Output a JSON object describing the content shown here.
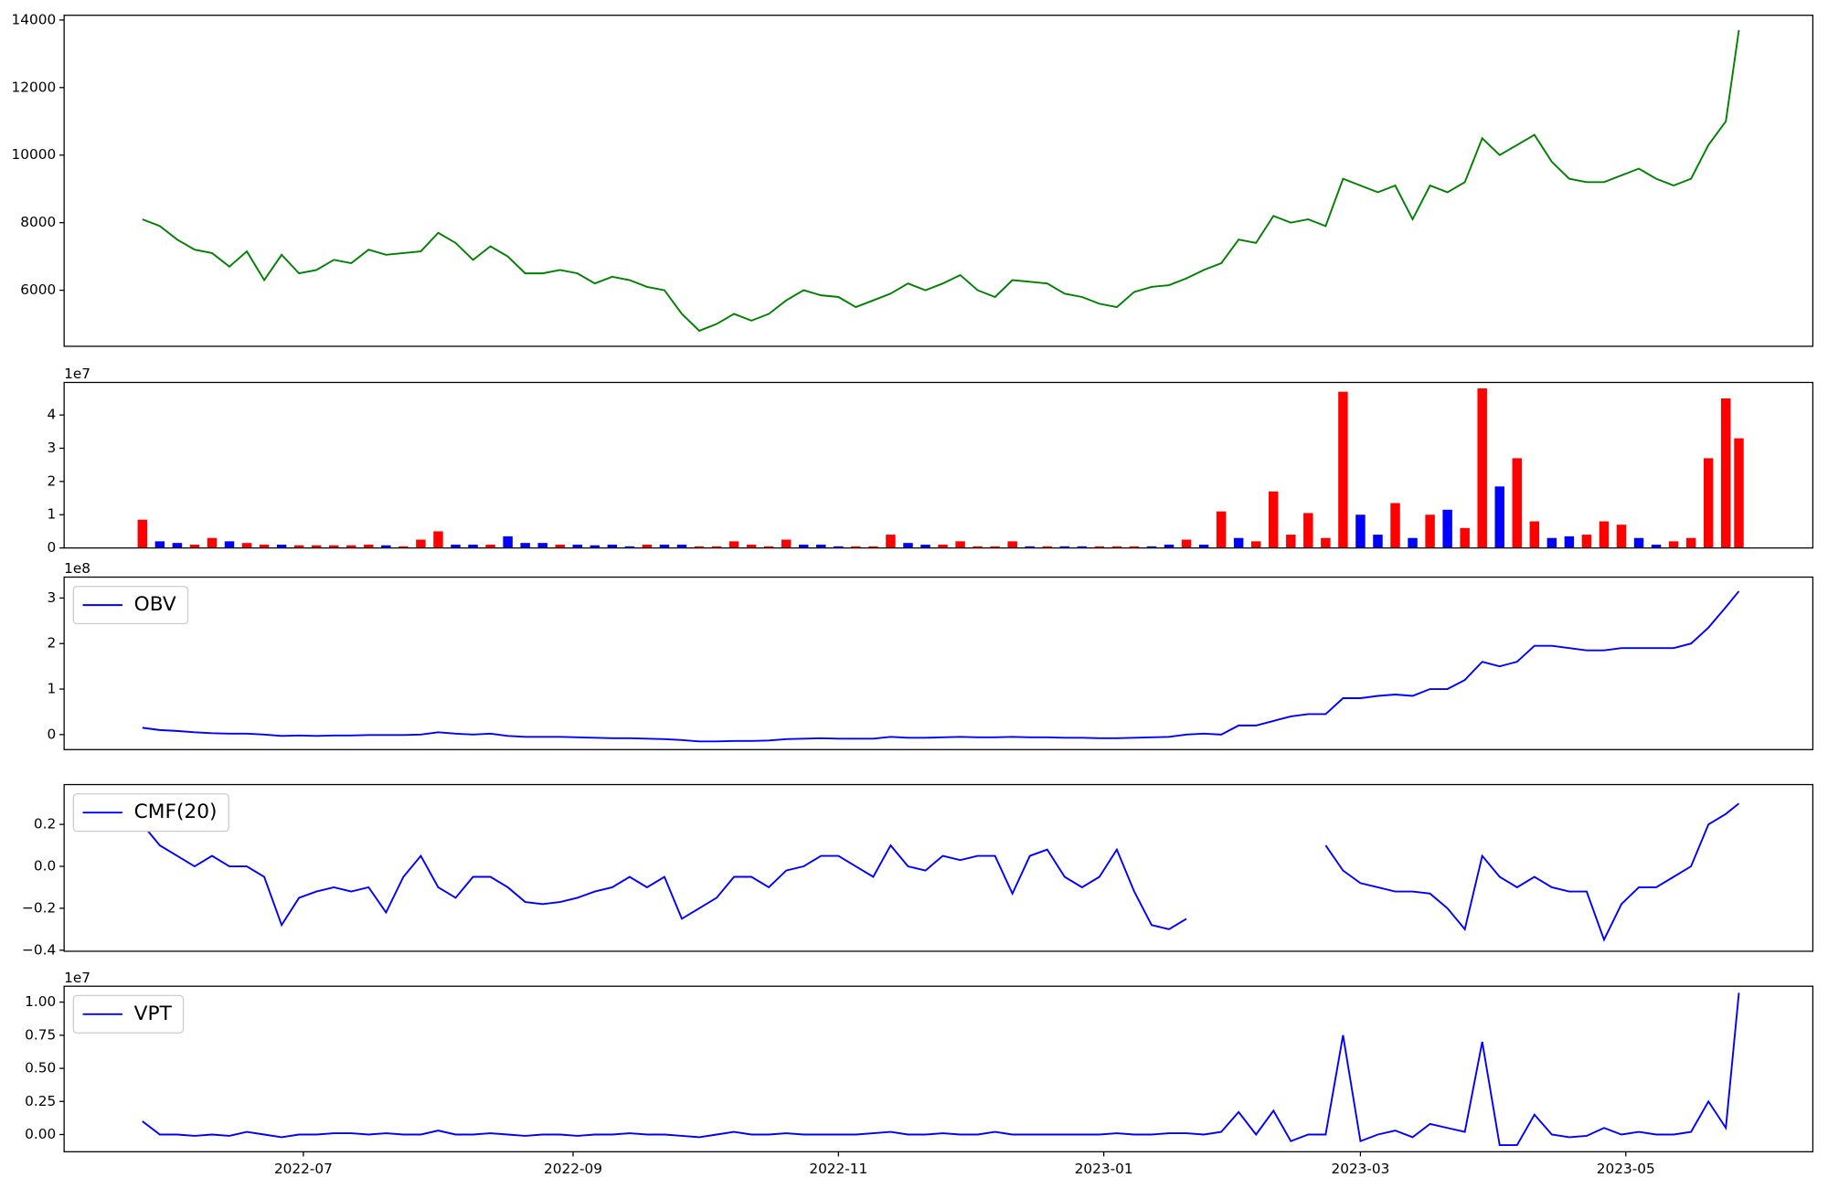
{
  "chart_data": [
    {
      "type": "line",
      "color": "green",
      "x": [
        -37,
        -33,
        -29,
        -25,
        -21,
        -17,
        -13,
        -9,
        -5,
        -1,
        3,
        7,
        11,
        15,
        19,
        23,
        27,
        31,
        35,
        39,
        43,
        47,
        51,
        55,
        59,
        63,
        67,
        71,
        75,
        79,
        83,
        87,
        91,
        95,
        99,
        103,
        107,
        111,
        115,
        119,
        123,
        127,
        131,
        135,
        139,
        143,
        147,
        151,
        155,
        159,
        163,
        167,
        171,
        175,
        179,
        183,
        187,
        191,
        195,
        199,
        203,
        207,
        211,
        215,
        219,
        223,
        227,
        231,
        235,
        239,
        243,
        247,
        251,
        255,
        259,
        263,
        267,
        271,
        275,
        279,
        283,
        287,
        291,
        295,
        299,
        303,
        307,
        311,
        315,
        319,
        323,
        327,
        330
      ],
      "values": [
        8100,
        7900,
        7500,
        7200,
        7100,
        6700,
        7150,
        6300,
        7050,
        6500,
        6600,
        6900,
        6800,
        7200,
        7050,
        7100,
        7150,
        7700,
        7400,
        6900,
        7300,
        7000,
        6500,
        6500,
        6600,
        6500,
        6200,
        6400,
        6300,
        6100,
        6000,
        5300,
        4800,
        5000,
        5300,
        5100,
        5300,
        5700,
        6000,
        5850,
        5800,
        5500,
        5700,
        5900,
        6200,
        6000,
        6200,
        6450,
        6000,
        5800,
        6300,
        6250,
        6200,
        5900,
        5800,
        5600,
        5500,
        5950,
        6100,
        6150,
        6350,
        6600,
        6800,
        7500,
        7400,
        8200,
        8000,
        8100,
        7900,
        9300,
        9100,
        8900,
        9100,
        8100,
        9100,
        8900,
        9200,
        10500,
        10000,
        10300,
        10600,
        9800,
        9300,
        9200,
        9200,
        9400,
        9600,
        9300,
        9100,
        9300,
        10300,
        11000,
        13700
      ],
      "xlim": [
        -55,
        347
      ],
      "ylim": [
        4340,
        14140
      ],
      "yticks": [
        6000,
        8000,
        10000,
        12000,
        14000
      ]
    },
    {
      "type": "bar",
      "offset_label": "1e7",
      "x": [
        -37,
        -33,
        -29,
        -25,
        -21,
        -17,
        -13,
        -9,
        -5,
        -1,
        3,
        7,
        11,
        15,
        19,
        23,
        27,
        31,
        35,
        39,
        43,
        47,
        51,
        55,
        59,
        63,
        67,
        71,
        75,
        79,
        83,
        87,
        91,
        95,
        99,
        103,
        107,
        111,
        115,
        119,
        123,
        127,
        131,
        135,
        139,
        143,
        147,
        151,
        155,
        159,
        163,
        167,
        171,
        175,
        179,
        183,
        187,
        191,
        195,
        199,
        203,
        207,
        211,
        215,
        219,
        223,
        227,
        231,
        235,
        239,
        243,
        247,
        251,
        255,
        259,
        263,
        267,
        271,
        275,
        279,
        283,
        287,
        291,
        295,
        299,
        303,
        307,
        311,
        315,
        319,
        323,
        327,
        330
      ],
      "values": [
        0.85,
        0.2,
        0.15,
        0.1,
        0.3,
        0.2,
        0.15,
        0.1,
        0.1,
        0.08,
        0.08,
        0.08,
        0.08,
        0.1,
        0.08,
        0.05,
        0.25,
        0.5,
        0.1,
        0.1,
        0.1,
        0.35,
        0.15,
        0.15,
        0.1,
        0.1,
        0.08,
        0.1,
        0.05,
        0.1,
        0.1,
        0.1,
        0.05,
        0.05,
        0.2,
        0.1,
        0.05,
        0.25,
        0.1,
        0.1,
        0.05,
        0.05,
        0.05,
        0.4,
        0.15,
        0.1,
        0.1,
        0.2,
        0.05,
        0.05,
        0.2,
        0.05,
        0.05,
        0.05,
        0.05,
        0.05,
        0.05,
        0.05,
        0.05,
        0.1,
        0.25,
        0.1,
        1.1,
        0.3,
        0.2,
        1.7,
        0.4,
        1.05,
        0.3,
        4.7,
        1.0,
        0.4,
        1.35,
        0.3,
        1.0,
        1.15,
        0.6,
        4.8,
        1.85,
        2.7,
        0.8,
        0.3,
        0.35,
        0.4,
        0.8,
        0.7,
        0.3,
        0.1,
        0.2,
        0.3,
        2.7,
        4.5,
        3.3
      ],
      "colors": [
        "red",
        "blue",
        "blue",
        "red",
        "red",
        "blue",
        "red",
        "red",
        "blue",
        "red",
        "red",
        "red",
        "red",
        "red",
        "blue",
        "red",
        "red",
        "red",
        "blue",
        "blue",
        "red",
        "blue",
        "blue",
        "blue",
        "red",
        "blue",
        "blue",
        "blue",
        "blue",
        "red",
        "blue",
        "blue",
        "red",
        "red",
        "red",
        "red",
        "red",
        "red",
        "blue",
        "blue",
        "blue",
        "red",
        "red",
        "red",
        "blue",
        "blue",
        "red",
        "red",
        "red",
        "red",
        "red",
        "blue",
        "red",
        "blue",
        "blue",
        "red",
        "red",
        "red",
        "blue",
        "blue",
        "red",
        "blue",
        "red",
        "blue",
        "red",
        "red",
        "red",
        "red",
        "red",
        "red",
        "blue",
        "blue",
        "red",
        "blue",
        "red",
        "blue",
        "red",
        "red",
        "blue",
        "red",
        "red",
        "blue",
        "blue",
        "red",
        "red",
        "red",
        "blue",
        "blue",
        "red",
        "red",
        "red",
        "red",
        "red"
      ],
      "xlim": [
        -55,
        347
      ],
      "ylim": [
        0,
        4.98
      ],
      "yticks": [
        0,
        1,
        2,
        3,
        4
      ]
    },
    {
      "type": "line",
      "offset_label": "1e8",
      "legend": "upper left",
      "x": [
        -37,
        -33,
        -29,
        -25,
        -21,
        -17,
        -13,
        -9,
        -5,
        -1,
        3,
        7,
        11,
        15,
        19,
        23,
        27,
        31,
        35,
        39,
        43,
        47,
        51,
        55,
        59,
        63,
        67,
        71,
        75,
        79,
        83,
        87,
        91,
        95,
        99,
        103,
        107,
        111,
        115,
        119,
        123,
        127,
        131,
        135,
        139,
        143,
        147,
        151,
        155,
        159,
        163,
        167,
        171,
        175,
        179,
        183,
        187,
        191,
        195,
        199,
        203,
        207,
        211,
        215,
        219,
        223,
        227,
        231,
        235,
        239,
        243,
        247,
        251,
        255,
        259,
        263,
        267,
        271,
        275,
        279,
        283,
        287,
        291,
        295,
        299,
        303,
        307,
        311,
        315,
        319,
        323,
        327,
        330
      ],
      "series": [
        {
          "name": "OBV",
          "color": "blue",
          "values": [
            0.15,
            0.1,
            0.08,
            0.05,
            0.03,
            0.02,
            0.02,
            0.0,
            -0.03,
            -0.02,
            -0.03,
            -0.02,
            -0.02,
            -0.01,
            -0.01,
            -0.01,
            0.0,
            0.05,
            0.02,
            0.0,
            0.02,
            -0.03,
            -0.05,
            -0.05,
            -0.05,
            -0.06,
            -0.07,
            -0.08,
            -0.08,
            -0.09,
            -0.1,
            -0.12,
            -0.15,
            -0.15,
            -0.14,
            -0.14,
            -0.13,
            -0.1,
            -0.09,
            -0.08,
            -0.09,
            -0.09,
            -0.09,
            -0.05,
            -0.07,
            -0.07,
            -0.06,
            -0.05,
            -0.06,
            -0.06,
            -0.05,
            -0.06,
            -0.06,
            -0.07,
            -0.07,
            -0.08,
            -0.08,
            -0.07,
            -0.06,
            -0.05,
            0.0,
            0.02,
            0.0,
            0.2,
            0.2,
            0.3,
            0.4,
            0.45,
            0.45,
            0.8,
            0.8,
            0.85,
            0.88,
            0.85,
            1.0,
            1.0,
            1.2,
            1.6,
            1.5,
            1.6,
            1.95,
            1.95,
            1.9,
            1.85,
            1.85,
            1.9,
            1.9,
            1.9,
            1.9,
            2.0,
            2.35,
            2.8,
            3.15
          ]
        }
      ],
      "xlim": [
        -55,
        347
      ],
      "ylim": [
        -0.33,
        3.46
      ],
      "yticks": [
        0,
        1,
        2,
        3
      ]
    },
    {
      "type": "line",
      "legend": "upper left",
      "x": [
        -37,
        -33,
        -29,
        -25,
        -21,
        -17,
        -13,
        -9,
        -5,
        -1,
        3,
        7,
        11,
        15,
        19,
        23,
        27,
        31,
        35,
        39,
        43,
        47,
        51,
        55,
        59,
        63,
        67,
        71,
        75,
        79,
        83,
        87,
        91,
        95,
        99,
        103,
        107,
        111,
        115,
        119,
        123,
        127,
        131,
        135,
        139,
        143,
        147,
        151,
        155,
        159,
        163,
        167,
        171,
        175,
        179,
        183,
        187,
        191,
        195,
        199,
        203,
        207,
        211,
        215,
        219,
        223,
        227,
        231,
        235,
        239,
        243,
        247,
        251,
        255,
        259,
        263,
        267,
        271,
        275,
        279,
        283,
        287,
        291,
        295,
        299,
        303,
        307,
        311,
        315,
        319,
        323,
        327,
        330
      ],
      "series": [
        {
          "name": "CMF(20)",
          "color": "blue",
          "values": [
            0.2,
            0.1,
            0.05,
            0.0,
            0.05,
            0.0,
            0.0,
            -0.05,
            -0.28,
            -0.15,
            -0.12,
            -0.1,
            -0.12,
            -0.1,
            -0.22,
            -0.05,
            0.05,
            -0.1,
            -0.15,
            -0.05,
            -0.05,
            -0.1,
            -0.17,
            -0.18,
            -0.17,
            -0.15,
            -0.12,
            -0.1,
            -0.05,
            -0.1,
            -0.05,
            -0.25,
            -0.2,
            -0.15,
            -0.05,
            -0.05,
            -0.1,
            -0.02,
            0.0,
            0.05,
            0.05,
            0.0,
            -0.05,
            0.1,
            0.0,
            -0.02,
            0.05,
            0.03,
            0.05,
            0.05,
            -0.13,
            0.05,
            0.08,
            -0.05,
            -0.1,
            -0.05,
            0.08,
            -0.12,
            -0.28,
            -0.3,
            -0.25,
            null,
            null,
            null,
            null,
            null,
            null,
            null,
            0.1,
            -0.02,
            -0.08,
            -0.1,
            -0.12,
            -0.12,
            -0.13,
            -0.2,
            -0.3,
            0.05,
            -0.05,
            -0.1,
            -0.05,
            -0.1,
            -0.12,
            -0.12,
            -0.35,
            -0.18,
            -0.1,
            -0.1,
            -0.05,
            0.0,
            0.2,
            0.25,
            0.3
          ]
        }
      ],
      "xlim": [
        -55,
        347
      ],
      "ylim": [
        -0.405,
        0.39
      ],
      "yticks": [
        {
          "value": 0.2,
          "label": "0.2"
        },
        {
          "value": 0,
          "label": "0.0"
        },
        {
          "value": -0.2,
          "label": "−0.2"
        },
        {
          "value": -0.4,
          "label": "−0.4"
        }
      ]
    },
    {
      "type": "line",
      "offset_label": "1e7",
      "legend": "upper left",
      "x": [
        -37,
        -33,
        -29,
        -25,
        -21,
        -17,
        -13,
        -9,
        -5,
        -1,
        3,
        7,
        11,
        15,
        19,
        23,
        27,
        31,
        35,
        39,
        43,
        47,
        51,
        55,
        59,
        63,
        67,
        71,
        75,
        79,
        83,
        87,
        91,
        95,
        99,
        103,
        107,
        111,
        115,
        119,
        123,
        127,
        131,
        135,
        139,
        143,
        147,
        151,
        155,
        159,
        163,
        167,
        171,
        175,
        179,
        183,
        187,
        191,
        195,
        199,
        203,
        207,
        211,
        215,
        219,
        223,
        227,
        231,
        235,
        239,
        243,
        247,
        251,
        255,
        259,
        263,
        267,
        271,
        275,
        279,
        283,
        287,
        291,
        295,
        299,
        303,
        307,
        311,
        315,
        319,
        323,
        327,
        330
      ],
      "series": [
        {
          "name": "VPT",
          "color": "blue",
          "values": [
            0.1,
            0.0,
            0.0,
            -0.01,
            0.0,
            -0.01,
            0.02,
            0.0,
            -0.02,
            0.0,
            0.0,
            0.01,
            0.01,
            0.0,
            0.01,
            0.0,
            0.0,
            0.03,
            0.0,
            0.0,
            0.01,
            0.0,
            -0.01,
            0.0,
            0.0,
            -0.01,
            0.0,
            0.0,
            0.01,
            0.0,
            0.0,
            -0.01,
            -0.02,
            0.0,
            0.02,
            0.0,
            0.0,
            0.01,
            0.0,
            0.0,
            0.0,
            0.0,
            0.01,
            0.02,
            0.0,
            0.0,
            0.01,
            0.0,
            0.0,
            0.02,
            0.0,
            0.0,
            0.0,
            0.0,
            0.0,
            0.0,
            0.01,
            0.0,
            0.0,
            0.01,
            0.01,
            0.0,
            0.02,
            0.17,
            0.0,
            0.18,
            -0.05,
            0.0,
            0.0,
            0.75,
            -0.05,
            0.0,
            0.03,
            -0.02,
            0.08,
            0.05,
            0.02,
            0.7,
            -0.08,
            -0.08,
            0.15,
            0.0,
            -0.02,
            -0.01,
            0.05,
            0.0,
            0.02,
            0.0,
            0.0,
            0.02,
            0.25,
            0.05,
            1.07
          ]
        }
      ],
      "xlim": [
        -55,
        347
      ],
      "ylim": [
        -0.13,
        1.12
      ],
      "yticks": [
        {
          "value": 0,
          "label": "0.00"
        },
        {
          "value": 0.25,
          "label": "0.25"
        },
        {
          "value": 0.5,
          "label": "0.50"
        },
        {
          "value": 0.75,
          "label": "0.75"
        },
        {
          "value": 1,
          "label": "1.00"
        }
      ],
      "xticks": [
        {
          "value": 0,
          "label": "2022-07"
        },
        {
          "value": 62,
          "label": "2022-09"
        },
        {
          "value": 123,
          "label": "2022-11"
        },
        {
          "value": 184,
          "label": "2023-01"
        },
        {
          "value": 243,
          "label": "2023-03"
        },
        {
          "value": 304,
          "label": "2023-05"
        }
      ]
    }
  ]
}
